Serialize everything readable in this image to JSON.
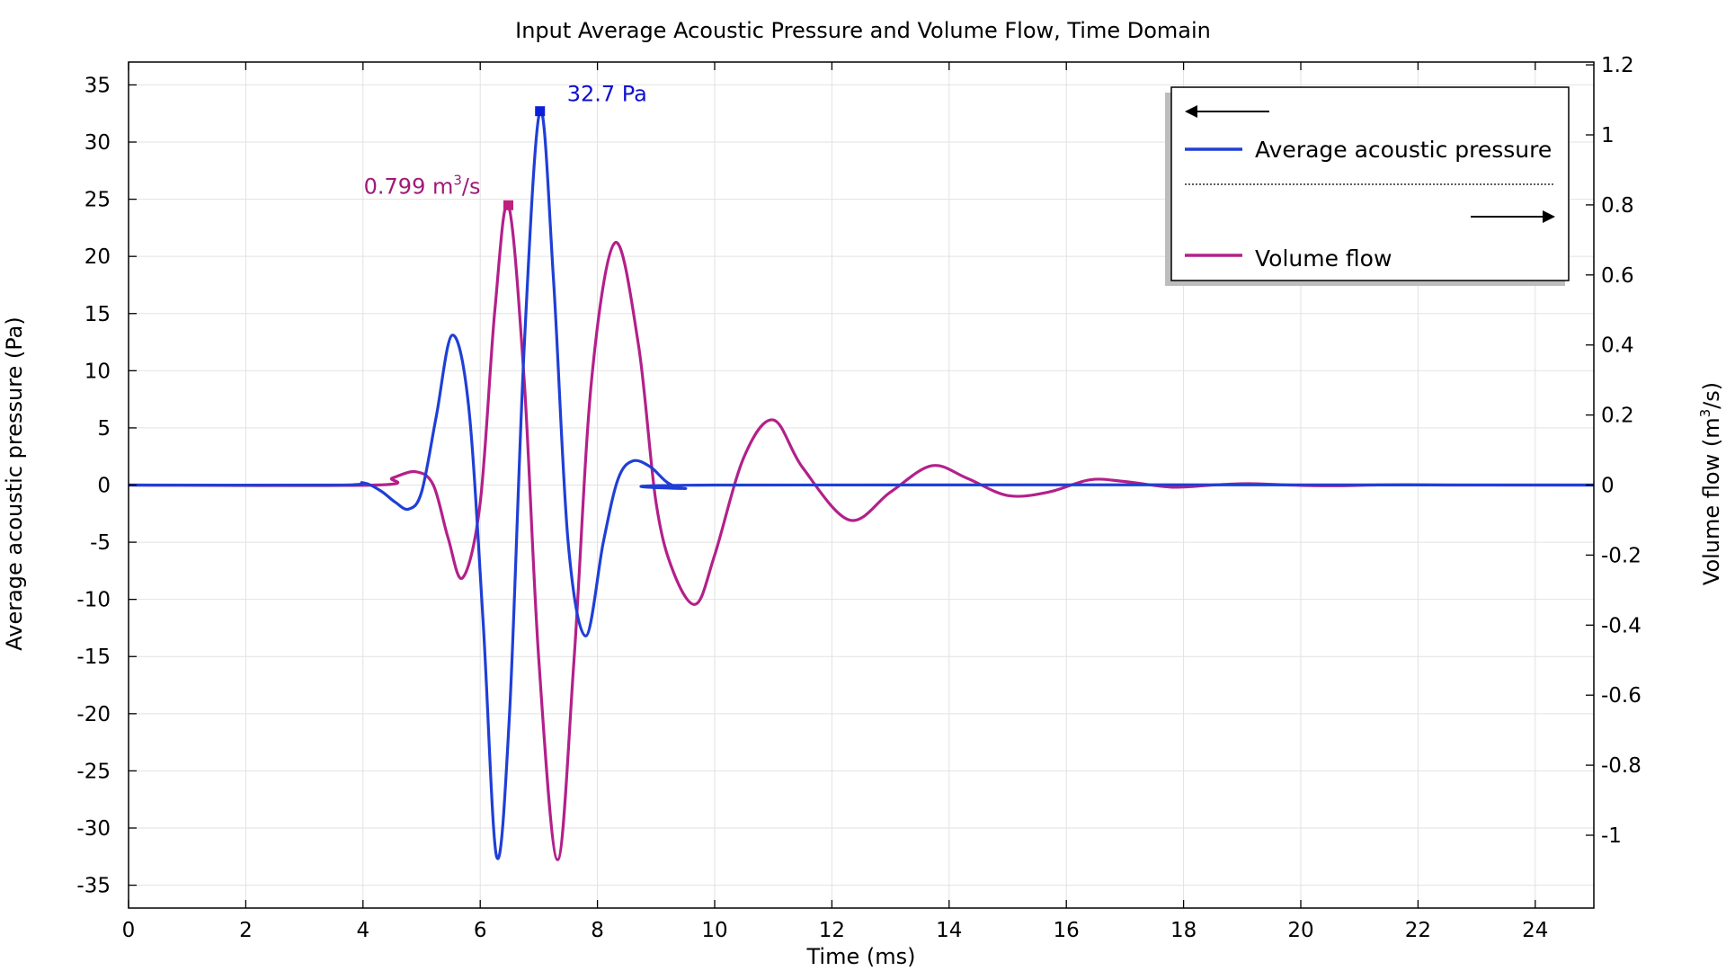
{
  "chart_data": {
    "type": "line",
    "title": "Input Average Acoustic Pressure and Volume Flow, Time Domain",
    "xlabel": "Time (ms)",
    "ylabel_left": "Average acoustic pressure (Pa)",
    "ylabel_right_main": "Volume flow (m",
    "ylabel_right_sup": "3",
    "ylabel_right_end": "/s)",
    "xlim": [
      0,
      25
    ],
    "ylim_left": [
      -37,
      37
    ],
    "ylim_right": [
      -1.208,
      1.208
    ],
    "xticks": [
      0,
      2,
      4,
      6,
      8,
      10,
      12,
      14,
      16,
      18,
      20,
      22,
      24
    ],
    "xtick_labels": [
      "0",
      "2",
      "4",
      "6",
      "8",
      "10",
      "12",
      "14",
      "16",
      "18",
      "20",
      "22",
      "24"
    ],
    "yticks_left": [
      35,
      30,
      25,
      20,
      15,
      10,
      5,
      0,
      -5,
      -10,
      -15,
      -20,
      -25,
      -30,
      -35
    ],
    "ytick_labels_left": [
      "35",
      "30",
      "25",
      "20",
      "15",
      "10",
      "5",
      "0",
      "-5",
      "-10",
      "-15",
      "-20",
      "-25",
      "-30",
      "-35"
    ],
    "yticks_right": [
      1.2,
      1,
      0.8,
      0.6,
      0.4,
      0.2,
      0,
      -0.2,
      -0.4,
      -0.6,
      -0.8,
      -1
    ],
    "ytick_labels_right": [
      "1.2",
      "1",
      "0.8",
      "0.6",
      "0.4",
      "0.2",
      "0",
      "-0.2",
      "-0.4",
      "-0.6",
      "-0.8",
      "-1"
    ],
    "grid": true,
    "legend_position": "top-right",
    "series": [
      {
        "name": "Average acoustic pressure",
        "axis": "left",
        "color": "#1f3fd6",
        "x": [
          0,
          3.6,
          4.0,
          4.3,
          4.55,
          4.78,
          5.0,
          5.25,
          5.52,
          5.8,
          6.05,
          6.28,
          6.5,
          6.75,
          7.02,
          7.25,
          7.5,
          7.8,
          8.1,
          8.35,
          8.6,
          8.9,
          9.2,
          9.5,
          10.0,
          25
        ],
        "y": [
          0,
          0,
          0.2,
          -0.5,
          -1.5,
          -2.1,
          -0.6,
          6.0,
          13.1,
          7.0,
          -12.0,
          -32.5,
          -20.0,
          12.0,
          32.7,
          18.0,
          -5.0,
          -13.2,
          -5.0,
          0.5,
          2.1,
          1.6,
          0.2,
          -0.3,
          0,
          0
        ]
      },
      {
        "name": "Volume flow",
        "axis": "right",
        "color": "#b3208a",
        "x": [
          0,
          4.2,
          4.5,
          4.9,
          5.2,
          5.45,
          5.7,
          6.0,
          6.25,
          6.48,
          6.75,
          7.0,
          7.32,
          7.6,
          7.9,
          8.3,
          8.7,
          9.0,
          9.3,
          9.68,
          10.0,
          10.5,
          11.0,
          11.5,
          12.3,
          13.0,
          13.7,
          14.3,
          15.0,
          15.7,
          16.4,
          17.0,
          17.8,
          18.5,
          19.1,
          19.8,
          20.5,
          21.2,
          21.8,
          22.5,
          23.2,
          25
        ],
        "y": [
          0,
          0,
          0.02,
          0.038,
          0.0,
          -0.15,
          -0.265,
          -0.05,
          0.5,
          0.799,
          0.3,
          -0.5,
          -1.07,
          -0.5,
          0.3,
          0.692,
          0.4,
          -0.05,
          -0.25,
          -0.34,
          -0.2,
          0.08,
          0.186,
          0.05,
          -0.1,
          -0.02,
          0.055,
          0.02,
          -0.03,
          -0.02,
          0.015,
          0.01,
          -0.006,
          0.0,
          0.004,
          0.0,
          -0.002,
          0.0,
          0.001,
          0.0,
          0.0,
          0
        ]
      }
    ],
    "annotations": [
      {
        "series": "Average acoustic pressure",
        "x": 7.02,
        "y": 32.7,
        "text": "32.7 Pa",
        "color": "#1010d0"
      },
      {
        "series": "Volume flow",
        "x": 6.48,
        "y": 0.799,
        "text_main": "0.799 m",
        "text_sup": "3",
        "text_end": "/s",
        "color": "#a01a78"
      }
    ]
  }
}
